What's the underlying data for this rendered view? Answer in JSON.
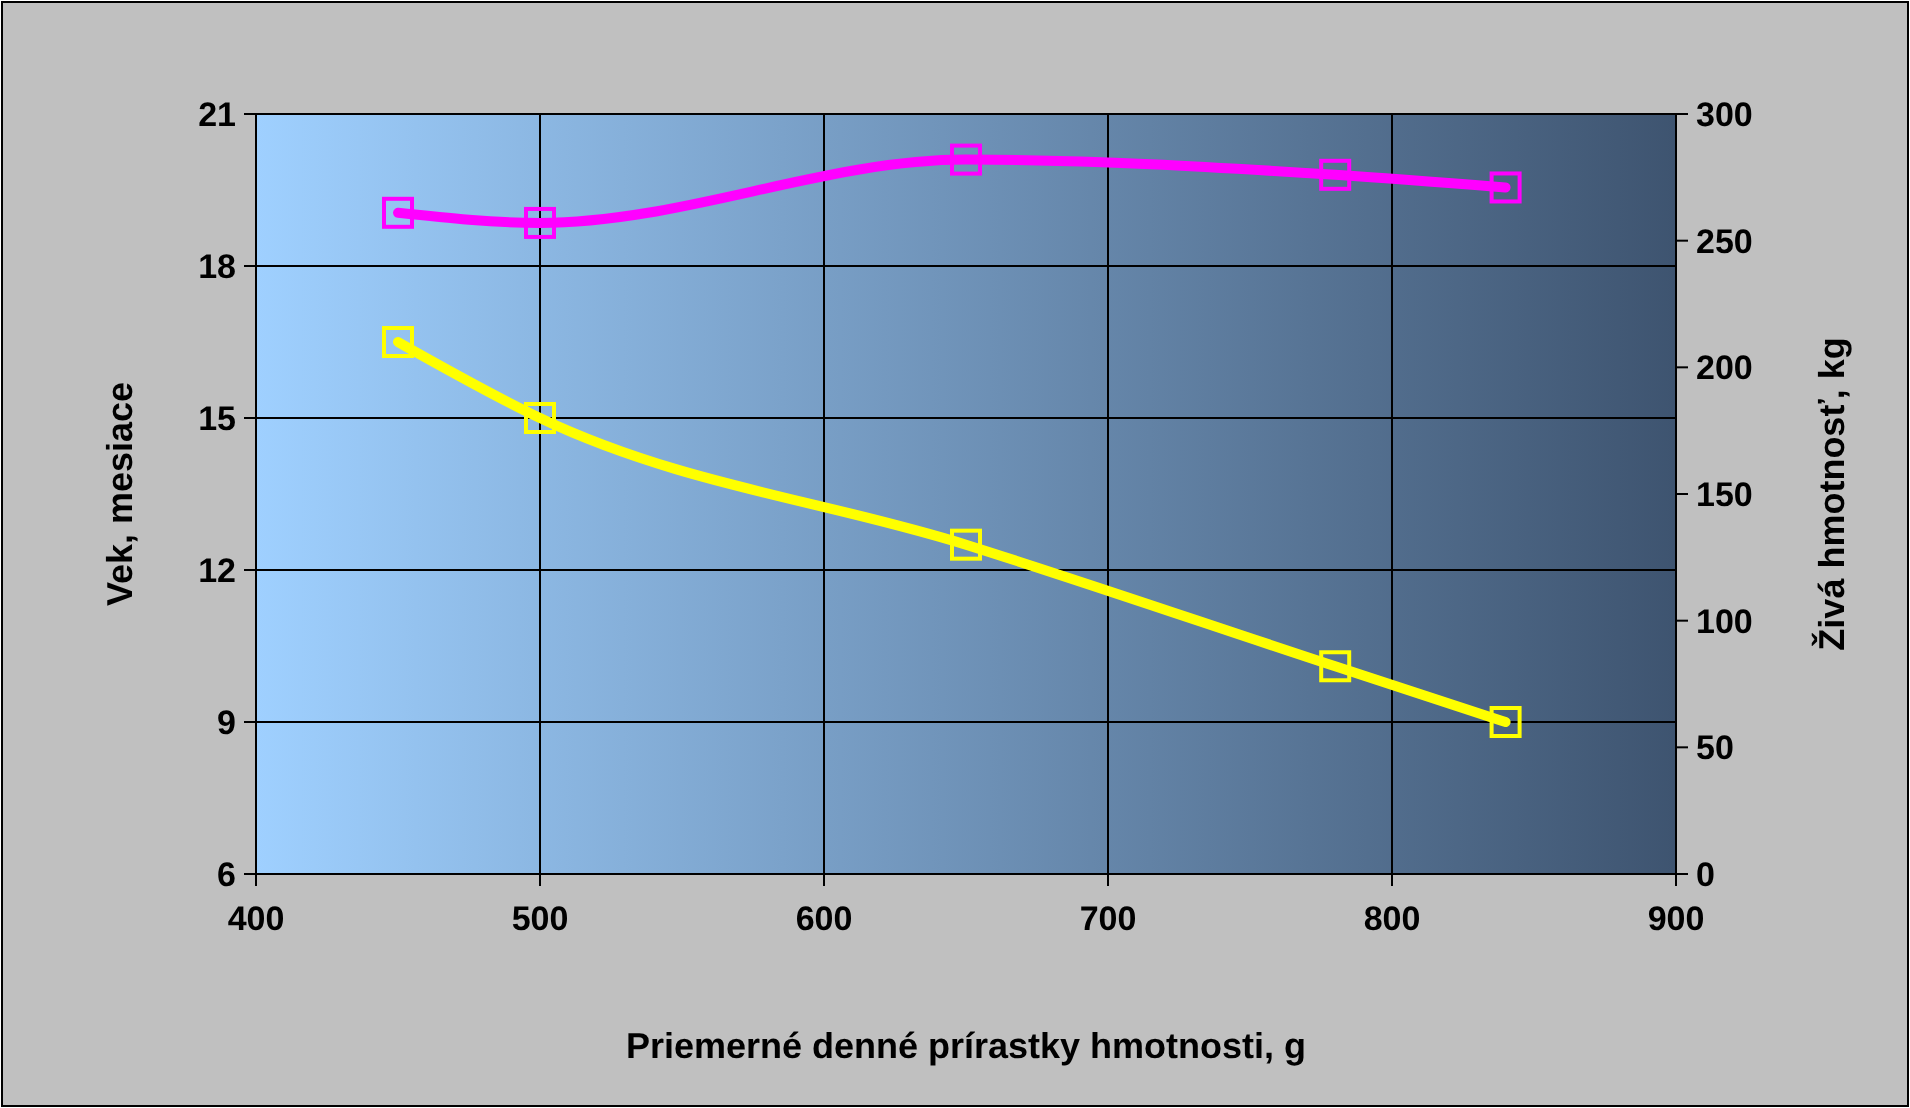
{
  "chart_data": {
    "type": "line",
    "xlabel": "Priemerné denné prírastky hmotnosti, g",
    "ylabel": "Vek, mesiace",
    "y2label": "Živá hmotnosť, kg",
    "x": [
      450,
      500,
      650,
      780,
      840
    ],
    "series": [
      {
        "color": "#ffff00",
        "values": [
          16.5,
          15.0,
          12.5,
          10.1,
          9.0
        ]
      },
      {
        "color": "#ff00ff",
        "values": [
          261,
          257,
          282,
          276,
          271
        ],
        "axis": "y2"
      }
    ],
    "xlim": [
      400,
      900
    ],
    "xticks": [
      400,
      500,
      600,
      700,
      800,
      900
    ],
    "ylim": [
      6,
      21
    ],
    "yticks": [
      6,
      9,
      12,
      15,
      18,
      21
    ],
    "y2lim": [
      0,
      300
    ],
    "y2ticks": [
      0,
      50,
      100,
      150,
      200,
      250,
      300
    ],
    "grid": true,
    "marker": "square",
    "line_style": "solid"
  }
}
